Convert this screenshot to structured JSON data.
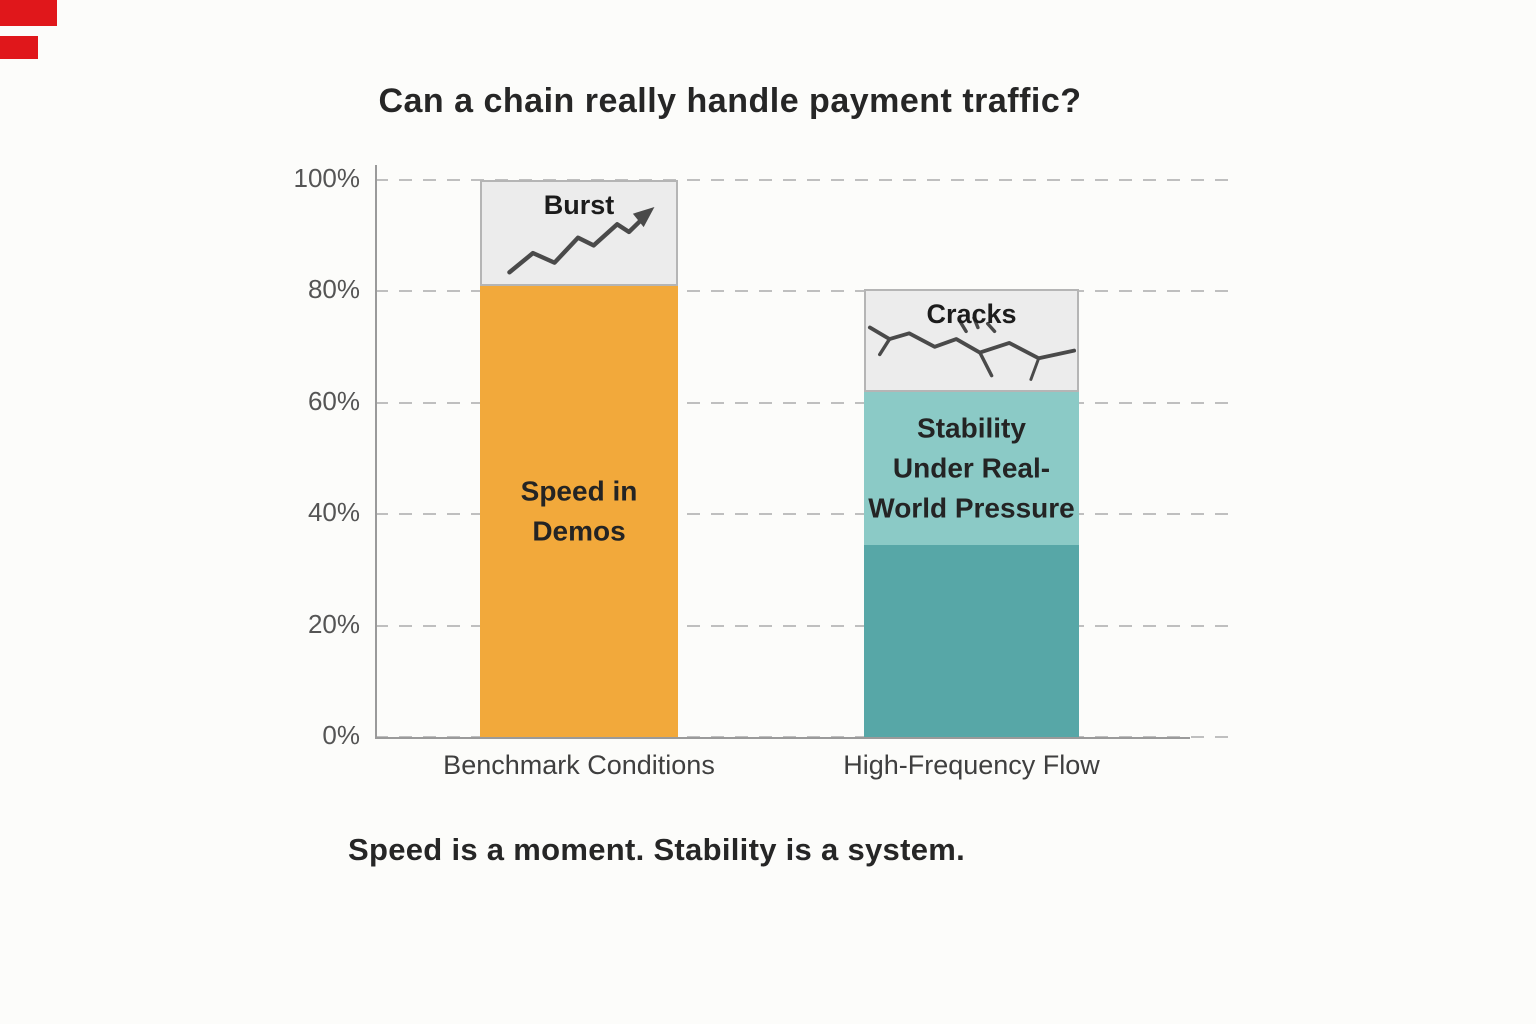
{
  "page": {
    "title": "Can a chain really handle payment traffic?",
    "caption": "Speed is a moment. Stability is a system."
  },
  "colors": {
    "orange_bar": "#F2A93B",
    "teal_light": "#8BCAC6",
    "teal_dark": "#57A7A7",
    "annotation_zone_gray": "#ECECEC",
    "corner_mark_red": "#E0171B",
    "axis_gray": "#9A9A9A",
    "text_dark": "#262626"
  },
  "chart_data": {
    "type": "bar",
    "stacked": true,
    "title": "Can a chain really handle payment traffic?",
    "caption": "Speed is a moment. Stability is a system.",
    "xlabel": "",
    "ylabel": "",
    "ylim": [
      0,
      100
    ],
    "yticks": [
      "0%",
      "20%",
      "40%",
      "60%",
      "80%",
      "100%"
    ],
    "ytick_values": [
      0,
      20,
      40,
      60,
      80,
      100
    ],
    "grid": "dashed horizontal gridlines",
    "legend": "none",
    "categories": [
      "Benchmark Conditions",
      "High-Frequency Flow"
    ],
    "bars": [
      {
        "category": "Benchmark Conditions",
        "total": 100,
        "segments": [
          {
            "label": "Speed in\nDemos",
            "name": "speed-in-demos",
            "from": 0,
            "to": 81,
            "value": 81,
            "color": "#F2A93B",
            "kind": "solid",
            "icon": ""
          },
          {
            "label": "Burst",
            "name": "burst",
            "from": 81,
            "to": 100,
            "value": 19,
            "color": "#ECECEC",
            "kind": "annotation-zone",
            "icon": "rising-zigzag-arrow"
          }
        ]
      },
      {
        "category": "High-Frequency Flow",
        "total": 80.5,
        "segments": [
          {
            "label": "",
            "name": "stability-base",
            "from": 0,
            "to": 34.5,
            "value": 34.5,
            "color": "#57A7A7",
            "kind": "solid",
            "icon": ""
          },
          {
            "label": "Stability\nUnder Real-\nWorld Pressure",
            "name": "stability-under-real-world-pressure",
            "from": 34.5,
            "to": 62,
            "value": 27.5,
            "color": "#8BCAC6",
            "kind": "solid",
            "icon": ""
          },
          {
            "label": "Cracks",
            "name": "cracks",
            "from": 62,
            "to": 80.5,
            "value": 18.5,
            "color": "#ECECEC",
            "kind": "annotation-zone",
            "icon": "cracks"
          }
        ]
      }
    ]
  }
}
